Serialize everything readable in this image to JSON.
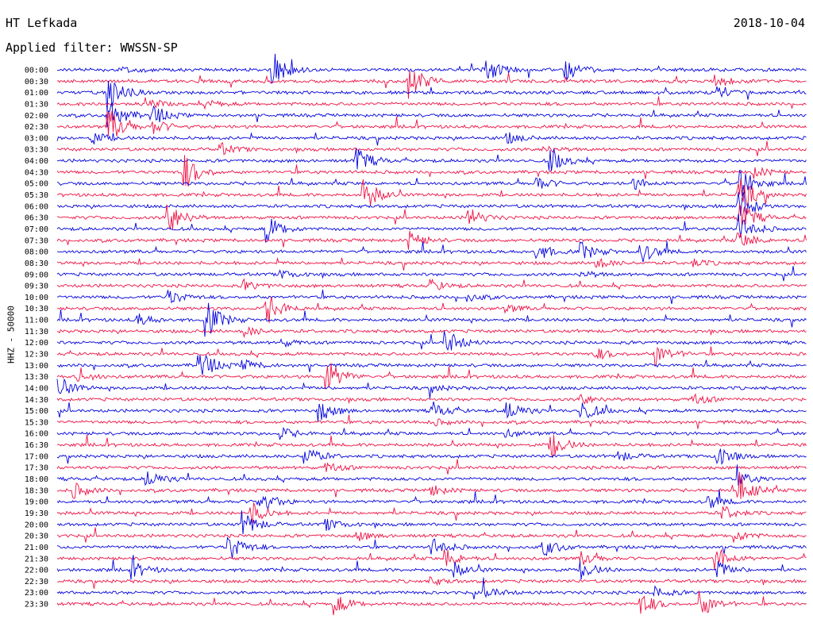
{
  "header": {
    "station": "HT Lefkada",
    "date": "2018-10-04",
    "filter_label": "Applied filter: WWSSN-SP"
  },
  "chart_data": {
    "type": "line",
    "title": "HT Lefkada",
    "ylabel": "HHZ - 50000",
    "colors": {
      "even_trace": "#0000dd",
      "odd_trace": "#ee1144"
    },
    "rows": [
      {
        "label": "00:00",
        "events": [
          [
            0.29,
            0.9
          ],
          [
            0.57,
            0.8
          ],
          [
            0.68,
            0.6
          ],
          [
            0.09,
            0.2
          ]
        ]
      },
      {
        "label": "00:30",
        "events": [
          [
            0.47,
            1.0
          ],
          [
            0.88,
            0.3
          ]
        ]
      },
      {
        "label": "01:00",
        "events": [
          [
            0.07,
            0.9
          ],
          [
            0.88,
            0.3
          ]
        ]
      },
      {
        "label": "01:30",
        "events": [
          [
            0.12,
            0.3
          ],
          [
            0.2,
            0.2
          ]
        ]
      },
      {
        "label": "02:00",
        "events": [
          [
            0.07,
            0.9
          ],
          [
            0.13,
            0.5
          ]
        ]
      },
      {
        "label": "02:30",
        "events": [
          [
            0.07,
            1.0
          ],
          [
            0.13,
            0.4
          ]
        ]
      },
      {
        "label": "03:00",
        "events": [
          [
            0.05,
            0.3
          ],
          [
            0.6,
            0.3
          ]
        ]
      },
      {
        "label": "03:30",
        "events": [
          [
            0.22,
            0.3
          ],
          [
            0.65,
            0.2
          ]
        ]
      },
      {
        "label": "04:00",
        "events": [
          [
            0.4,
            0.7
          ],
          [
            0.66,
            0.6
          ]
        ]
      },
      {
        "label": "04:30",
        "events": [
          [
            0.17,
            1.0
          ],
          [
            0.93,
            0.3
          ]
        ]
      },
      {
        "label": "05:00",
        "events": [
          [
            0.64,
            0.4
          ],
          [
            0.91,
            1.0
          ],
          [
            0.77,
            0.3
          ]
        ]
      },
      {
        "label": "05:30",
        "events": [
          [
            0.41,
            0.9
          ],
          [
            0.91,
            1.0
          ]
        ]
      },
      {
        "label": "06:00",
        "events": [
          [
            0.91,
            1.0
          ]
        ]
      },
      {
        "label": "06:30",
        "events": [
          [
            0.15,
            0.9
          ],
          [
            0.55,
            0.5
          ],
          [
            0.91,
            0.9
          ]
        ]
      },
      {
        "label": "07:00",
        "events": [
          [
            0.28,
            0.8
          ],
          [
            0.91,
            0.8
          ]
        ]
      },
      {
        "label": "07:30",
        "events": [
          [
            0.47,
            0.5
          ],
          [
            0.91,
            0.5
          ]
        ]
      },
      {
        "label": "08:00",
        "events": [
          [
            0.64,
            0.5
          ],
          [
            0.7,
            0.5
          ],
          [
            0.78,
            0.6
          ]
        ]
      },
      {
        "label": "08:30",
        "events": [
          [
            0.72,
            0.3
          ],
          [
            0.85,
            0.2
          ]
        ]
      },
      {
        "label": "09:00",
        "events": [
          [
            0.3,
            0.2
          ],
          [
            0.7,
            0.2
          ]
        ]
      },
      {
        "label": "09:30",
        "events": [
          [
            0.25,
            0.3
          ],
          [
            0.5,
            0.3
          ]
        ]
      },
      {
        "label": "10:00",
        "events": [
          [
            0.15,
            0.4
          ],
          [
            0.55,
            0.2
          ]
        ]
      },
      {
        "label": "10:30",
        "events": [
          [
            0.28,
            0.9
          ],
          [
            0.6,
            0.2
          ]
        ]
      },
      {
        "label": "11:00",
        "events": [
          [
            0.2,
            1.0
          ],
          [
            0.11,
            0.3
          ]
        ]
      },
      {
        "label": "11:30",
        "events": [
          [
            0.25,
            0.3
          ]
        ]
      },
      {
        "label": "12:00",
        "events": [
          [
            0.52,
            0.7
          ],
          [
            0.3,
            0.2
          ]
        ]
      },
      {
        "label": "12:30",
        "events": [
          [
            0.8,
            0.6
          ],
          [
            0.72,
            0.3
          ]
        ]
      },
      {
        "label": "13:00",
        "events": [
          [
            0.19,
            0.9
          ],
          [
            0.25,
            0.3
          ]
        ]
      },
      {
        "label": "13:30",
        "events": [
          [
            0.36,
            1.0
          ],
          [
            0.03,
            0.3
          ]
        ]
      },
      {
        "label": "14:00",
        "events": [
          [
            0.0,
            0.6
          ],
          [
            0.5,
            0.2
          ]
        ]
      },
      {
        "label": "14:30",
        "events": [
          [
            0.7,
            0.3
          ],
          [
            0.85,
            0.3
          ]
        ]
      },
      {
        "label": "15:00",
        "events": [
          [
            0.35,
            0.6
          ],
          [
            0.5,
            0.5
          ],
          [
            0.6,
            0.6
          ],
          [
            0.7,
            0.6
          ]
        ]
      },
      {
        "label": "15:30",
        "events": [
          [
            0.5,
            0.2
          ]
        ]
      },
      {
        "label": "16:00",
        "events": [
          [
            0.3,
            0.3
          ],
          [
            0.6,
            0.2
          ]
        ]
      },
      {
        "label": "16:30",
        "events": [
          [
            0.66,
            0.7
          ]
        ]
      },
      {
        "label": "17:00",
        "events": [
          [
            0.33,
            0.6
          ],
          [
            0.88,
            0.6
          ],
          [
            0.75,
            0.3
          ]
        ]
      },
      {
        "label": "17:30",
        "events": [
          [
            0.36,
            0.3
          ]
        ]
      },
      {
        "label": "18:00",
        "events": [
          [
            0.12,
            0.5
          ],
          [
            0.91,
            0.4
          ]
        ]
      },
      {
        "label": "18:30",
        "events": [
          [
            0.02,
            0.5
          ],
          [
            0.91,
            1.0
          ],
          [
            0.5,
            0.3
          ]
        ]
      },
      {
        "label": "19:00",
        "events": [
          [
            0.27,
            0.7
          ],
          [
            0.87,
            0.4
          ]
        ]
      },
      {
        "label": "19:30",
        "events": [
          [
            0.26,
            0.6
          ],
          [
            0.89,
            0.4
          ]
        ]
      },
      {
        "label": "20:00",
        "events": [
          [
            0.25,
            0.7
          ],
          [
            0.36,
            0.3
          ]
        ]
      },
      {
        "label": "20:30",
        "events": [
          [
            0.4,
            0.3
          ],
          [
            0.9,
            0.4
          ]
        ]
      },
      {
        "label": "21:00",
        "events": [
          [
            0.23,
            0.8
          ],
          [
            0.5,
            0.6
          ],
          [
            0.65,
            0.5
          ]
        ]
      },
      {
        "label": "21:30",
        "events": [
          [
            0.52,
            0.5
          ],
          [
            0.7,
            0.4
          ],
          [
            0.88,
            0.6
          ]
        ]
      },
      {
        "label": "22:00",
        "events": [
          [
            0.1,
            0.5
          ],
          [
            0.53,
            0.4
          ],
          [
            0.7,
            0.5
          ],
          [
            0.88,
            0.5
          ]
        ]
      },
      {
        "label": "22:30",
        "events": [
          [
            0.5,
            0.2
          ]
        ]
      },
      {
        "label": "23:00",
        "events": [
          [
            0.57,
            0.4
          ],
          [
            0.8,
            0.3
          ]
        ]
      },
      {
        "label": "23:30",
        "events": [
          [
            0.37,
            0.6
          ],
          [
            0.78,
            0.6
          ],
          [
            0.86,
            0.7
          ]
        ]
      }
    ]
  }
}
